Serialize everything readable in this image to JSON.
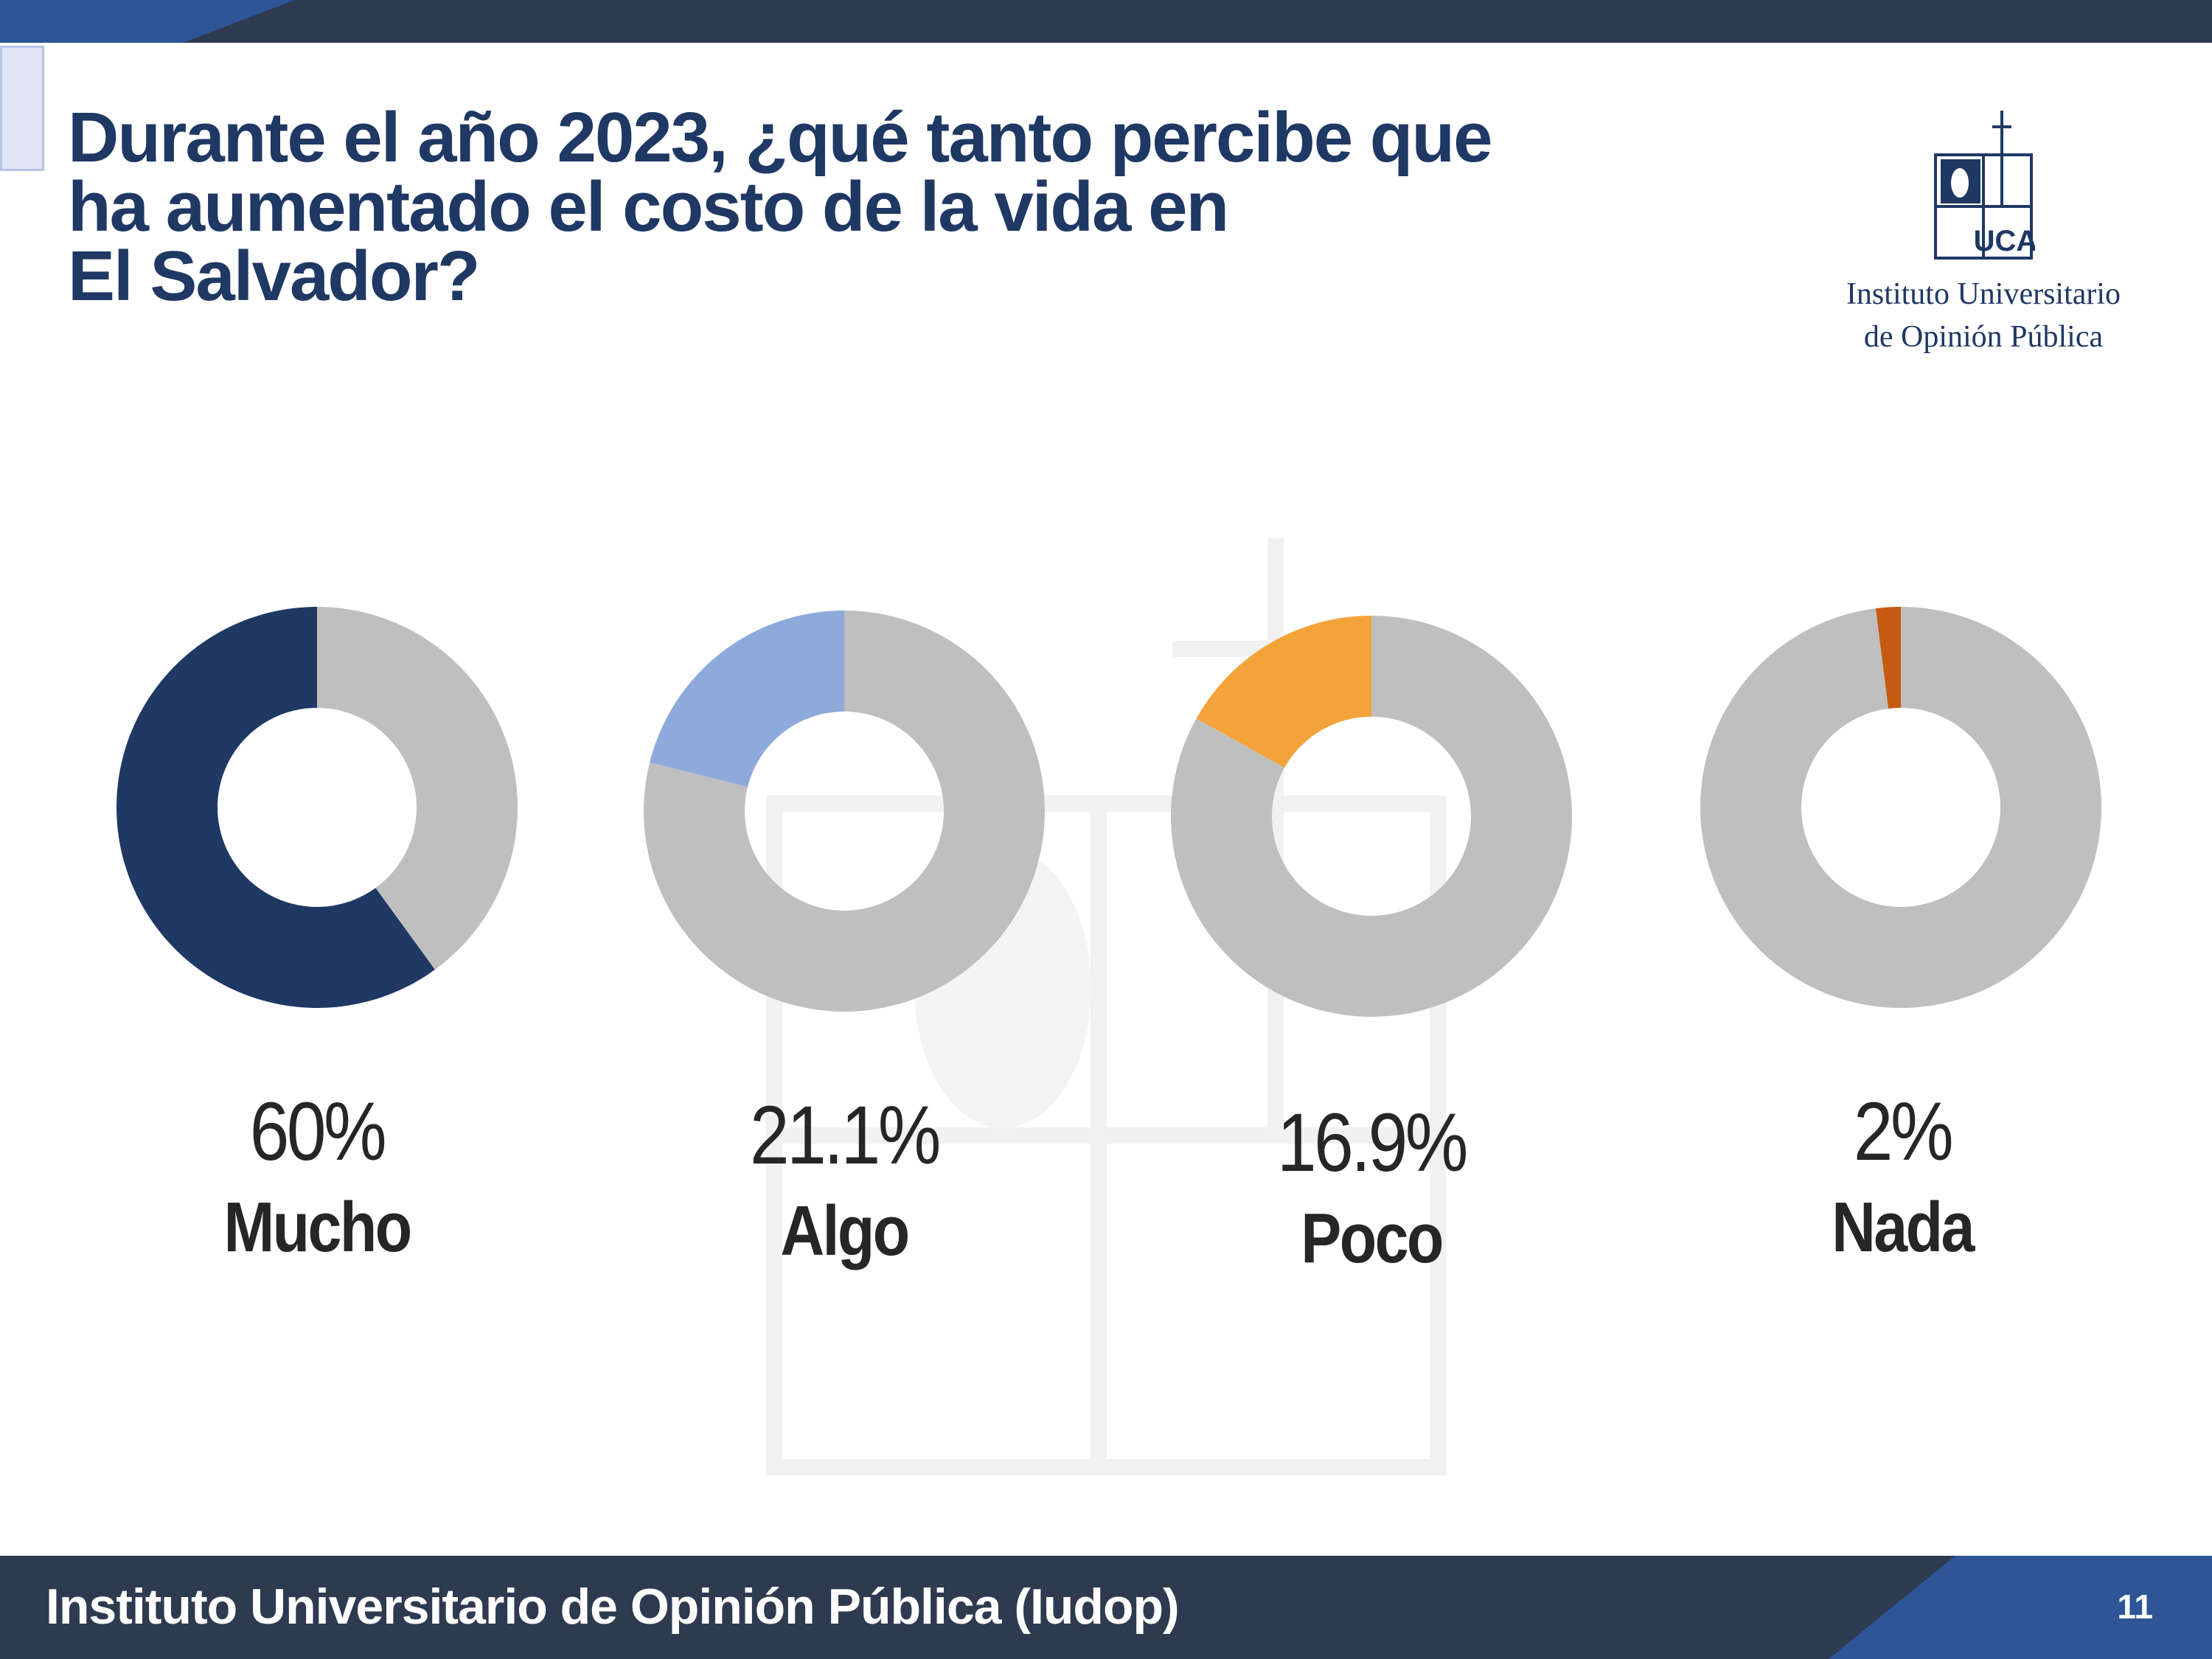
{
  "slide": {
    "title": "Durante el año 2023, ¿qué tanto percibe que\nha aumentado el costo de la vida en\nEl Salvador?",
    "logo_text": "Instituto Universitario\nde Opinión Pública",
    "logo_letters": "UCA",
    "footer": "Instituto Universitario de Opinión Pública (Iudop)",
    "page_number": "11"
  },
  "colors": {
    "remainder": "#bfbfbf",
    "mucho": "#1f3864",
    "algo": "#8eaadb",
    "poco": "#f4a33a",
    "nada": "#c55a11"
  },
  "chart_data": [
    {
      "type": "pie",
      "variant": "donut",
      "category": "Mucho",
      "value": 60,
      "value_label": "60%",
      "color": "#1f3864"
    },
    {
      "type": "pie",
      "variant": "donut",
      "category": "Algo",
      "value": 21.1,
      "value_label": "21.1%",
      "color": "#8eaadb"
    },
    {
      "type": "pie",
      "variant": "donut",
      "category": "Poco",
      "value": 16.9,
      "value_label": "16.9%",
      "color": "#f4a33a"
    },
    {
      "type": "pie",
      "variant": "donut",
      "category": "Nada",
      "value": 2,
      "value_label": "2%",
      "color": "#c55a11"
    }
  ]
}
